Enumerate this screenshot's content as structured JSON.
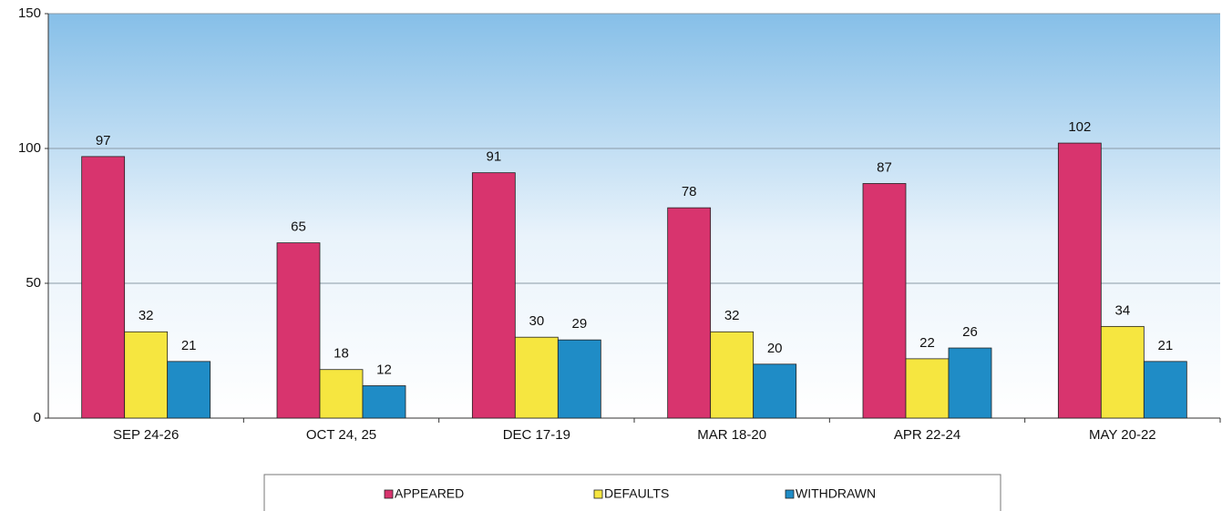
{
  "chart_data": {
    "type": "bar",
    "categories": [
      "SEP 24-26",
      "OCT 24, 25",
      "DEC 17-19",
      "MAR 18-20",
      "APR 22-24",
      "MAY 20-22"
    ],
    "series": [
      {
        "name": "APPEARED",
        "color": "#d8346e",
        "values": [
          97,
          65,
          91,
          78,
          87,
          102
        ]
      },
      {
        "name": "DEFAULTS",
        "color": "#f6e640",
        "values": [
          32,
          18,
          30,
          32,
          22,
          34
        ]
      },
      {
        "name": "WITHDRAWN",
        "color": "#1f8cc6",
        "values": [
          21,
          12,
          29,
          20,
          26,
          21
        ]
      }
    ],
    "ylim": [
      0,
      150
    ],
    "yticks": [
      0,
      50,
      100,
      150
    ],
    "grid": true,
    "legend": "bottom"
  }
}
